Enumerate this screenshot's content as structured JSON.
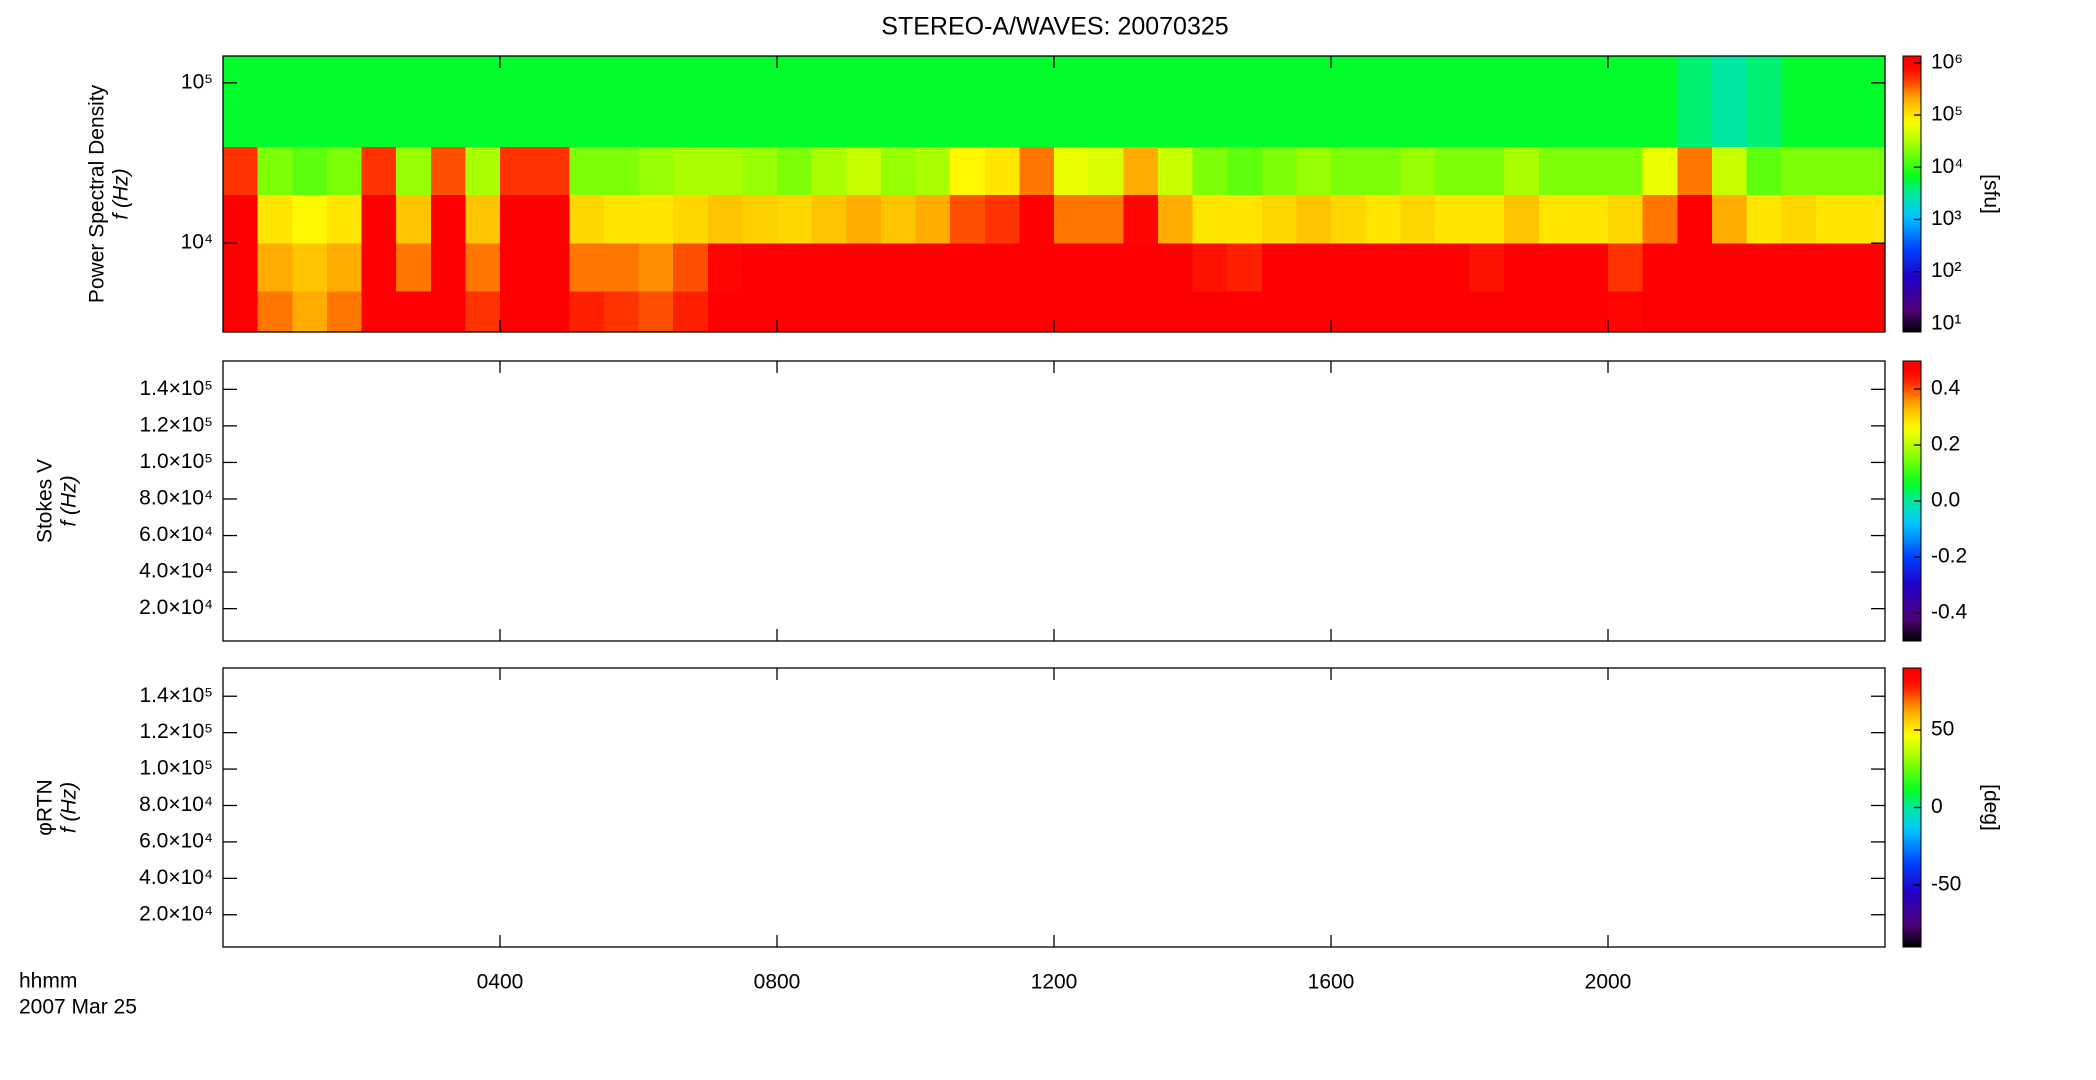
{
  "chart_data": [
    {
      "type": "heatmap",
      "title": "STEREO-A/WAVES: 20070325",
      "ylabel": [
        "Power Spectral Density",
        "f (Hz)"
      ],
      "xlim": [
        0,
        24
      ],
      "xticks": [
        4,
        8,
        12,
        16,
        20
      ],
      "ylim": [
        2790,
        147000
      ],
      "ylog": true,
      "yticks": [
        {
          "value": 10000,
          "label": "10⁴"
        },
        {
          "value": 100000,
          "label": "10⁵"
        }
      ],
      "x_bins": [
        0,
        0.5,
        1,
        1.5,
        2,
        2.5,
        3,
        3.5,
        4,
        4.5,
        5,
        5.5,
        6,
        6.5,
        7,
        7.5,
        8,
        8.5,
        9,
        9.5,
        10,
        10.5,
        11,
        11.5,
        12,
        12.5,
        13,
        13.5,
        14,
        14.5,
        15,
        15.5,
        16,
        16.5,
        17,
        17.5,
        18,
        18.5,
        19,
        19.5,
        20,
        20.5,
        21,
        21.5,
        22,
        22.5,
        23,
        23.5,
        24
      ],
      "y_bins": [
        2790,
        5000,
        10000,
        20000,
        40000,
        147000
      ],
      "z": [
        [
          1000000,
          300000,
          200000,
          300000,
          1000000,
          1000000,
          1000000,
          500000,
          1000000,
          1000000,
          600000,
          500000,
          400000,
          600000,
          1000000,
          1000000,
          1000000,
          1000000,
          1000000,
          1000000,
          1000000,
          1000000,
          1000000,
          1000000,
          1000000,
          1000000,
          1000000,
          1000000,
          1000000,
          1000000,
          1000000,
          1000000,
          1000000,
          1000000,
          1000000,
          1000000,
          1000000,
          1000000,
          1000000,
          1000000,
          800000,
          1000000,
          1000000,
          1000000,
          1000000,
          1000000,
          1000000,
          1000000
        ],
        [
          1000000,
          200000,
          150000,
          200000,
          1000000,
          300000,
          1000000,
          300000,
          1000000,
          1000000,
          300000,
          300000,
          250000,
          400000,
          800000,
          1000000,
          1000000,
          1000000,
          1000000,
          1000000,
          1000000,
          1000000,
          1000000,
          1000000,
          1000000,
          1000000,
          1000000,
          1000000,
          700000,
          600000,
          1000000,
          1000000,
          1000000,
          1000000,
          1000000,
          1000000,
          700000,
          1000000,
          1000000,
          1000000,
          500000,
          1000000,
          1000000,
          1000000,
          1000000,
          1000000,
          1000000,
          1000000
        ],
        [
          1000000,
          100000,
          80000,
          100000,
          1000000,
          150000,
          1000000,
          150000,
          1000000,
          1000000,
          120000,
          100000,
          100000,
          120000,
          150000,
          130000,
          120000,
          150000,
          200000,
          150000,
          200000,
          400000,
          500000,
          1000000,
          300000,
          300000,
          800000,
          200000,
          100000,
          100000,
          120000,
          150000,
          120000,
          100000,
          120000,
          100000,
          100000,
          150000,
          100000,
          100000,
          120000,
          300000,
          1000000,
          200000,
          100000,
          120000,
          100000,
          100000
        ],
        [
          500000,
          20000,
          15000,
          20000,
          500000,
          25000,
          400000,
          30000,
          500000,
          500000,
          20000,
          20000,
          25000,
          30000,
          30000,
          25000,
          20000,
          30000,
          40000,
          25000,
          30000,
          80000,
          100000,
          300000,
          60000,
          50000,
          200000,
          40000,
          20000,
          15000,
          20000,
          25000,
          20000,
          20000,
          25000,
          20000,
          20000,
          30000,
          20000,
          20000,
          20000,
          60000,
          300000,
          40000,
          15000,
          20000,
          20000,
          20000
        ],
        [
          6000,
          6000,
          6000,
          6000,
          6000,
          6000,
          6000,
          6000,
          6000,
          6000,
          6000,
          6000,
          6000,
          6000,
          6000,
          6000,
          6000,
          6000,
          6000,
          6000,
          6000,
          6000,
          6000,
          6000,
          6000,
          6000,
          6000,
          6000,
          6000,
          6000,
          6000,
          6000,
          6000,
          6000,
          6000,
          6000,
          6000,
          6000,
          6000,
          6000,
          6000,
          6000,
          4000,
          3000,
          4000,
          6000,
          6000,
          6000
        ]
      ],
      "clim": [
        7,
        1350000
      ],
      "clog": true,
      "cticks": [
        {
          "value": 10,
          "label": "10¹"
        },
        {
          "value": 100,
          "label": "10²"
        },
        {
          "value": 1000,
          "label": "10³"
        },
        {
          "value": 10000,
          "label": "10⁴"
        },
        {
          "value": 100000,
          "label": "10⁵"
        },
        {
          "value": 1000000,
          "label": "10⁶"
        }
      ],
      "clabel": "[sfu]"
    },
    {
      "type": "heatmap",
      "ylabel": [
        "Stokes V",
        "f (Hz)"
      ],
      "xlim": [
        0,
        24
      ],
      "xticks": [
        4,
        8,
        12,
        16,
        20
      ],
      "ylim": [
        2300,
        155500
      ],
      "yticks": [
        {
          "value": 20000,
          "label": "2.0×10⁴"
        },
        {
          "value": 40000,
          "label": "4.0×10⁴"
        },
        {
          "value": 60000,
          "label": "6.0×10⁴"
        },
        {
          "value": 80000,
          "label": "8.0×10⁴"
        },
        {
          "value": 100000,
          "label": "1.0×10⁵"
        },
        {
          "value": 120000,
          "label": "1.2×10⁵"
        },
        {
          "value": 140000,
          "label": "1.4×10⁵"
        }
      ],
      "clim": [
        -0.5,
        0.5
      ],
      "cticks": [
        -0.4,
        -0.2,
        {
          "value": 0,
          "label": "0.0"
        },
        0.2,
        0.4
      ]
    },
    {
      "type": "heatmap",
      "ylabel": [
        "φRTN",
        "f (Hz)"
      ],
      "xlim": [
        0,
        24
      ],
      "xticks": [
        {
          "value": 4,
          "label": "0400"
        },
        {
          "value": 8,
          "label": "0800"
        },
        {
          "value": 12,
          "label": "1200"
        },
        {
          "value": 16,
          "label": "1600"
        },
        {
          "value": 20,
          "label": "2000"
        }
      ],
      "xlabel": [
        "hhmm",
        "2007 Mar 25"
      ],
      "ylim": [
        2300,
        155500
      ],
      "yticks": [
        {
          "value": 20000,
          "label": "2.0×10⁴"
        },
        {
          "value": 40000,
          "label": "4.0×10⁴"
        },
        {
          "value": 60000,
          "label": "6.0×10⁴"
        },
        {
          "value": 80000,
          "label": "8.0×10⁴"
        },
        {
          "value": 100000,
          "label": "1.0×10⁵"
        },
        {
          "value": 120000,
          "label": "1.2×10⁵"
        },
        {
          "value": 140000,
          "label": "1.4×10⁵"
        }
      ],
      "clim": [
        -90,
        90
      ],
      "cticks": [
        -50,
        0,
        50
      ],
      "clabel": "[deg]"
    }
  ]
}
